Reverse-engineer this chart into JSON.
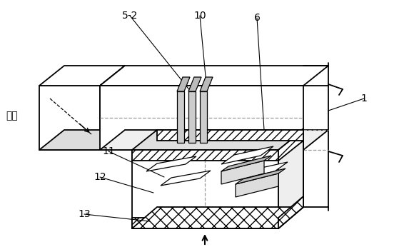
{
  "bg_color": "#ffffff",
  "line_color": "#000000",
  "labels": {
    "outdoor": "室外",
    "n1": "1",
    "n52": "5-2",
    "n6": "6",
    "n10": "10",
    "n11": "11",
    "n12": "12",
    "n13": "13"
  }
}
